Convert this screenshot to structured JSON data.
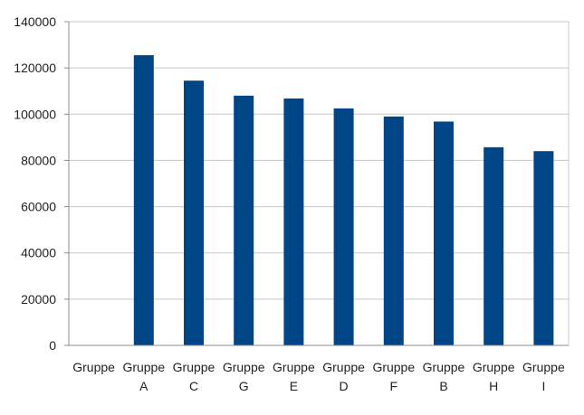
{
  "chart_data": {
    "type": "bar",
    "categories": [
      [
        "Gruppe",
        ""
      ],
      [
        "Gruppe",
        "A"
      ],
      [
        "Gruppe",
        "C"
      ],
      [
        "Gruppe",
        "G"
      ],
      [
        "Gruppe",
        "E"
      ],
      [
        "Gruppe",
        "D"
      ],
      [
        "Gruppe",
        "F"
      ],
      [
        "Gruppe",
        "B"
      ],
      [
        "Gruppe",
        "H"
      ],
      [
        "Gruppe",
        "I"
      ]
    ],
    "values": [
      0,
      125500,
      114500,
      108000,
      106800,
      102500,
      99000,
      96800,
      85700,
      84000
    ],
    "ylim": [
      0,
      140000
    ],
    "yticks": [
      "0",
      "20000",
      "40000",
      "60000",
      "80000",
      "100000",
      "120000",
      "140000"
    ],
    "grid": true,
    "legend": "none",
    "bar_color": "#004586",
    "gridline_color": "#c8c8c8",
    "axis_color": "#8c8c8c"
  }
}
